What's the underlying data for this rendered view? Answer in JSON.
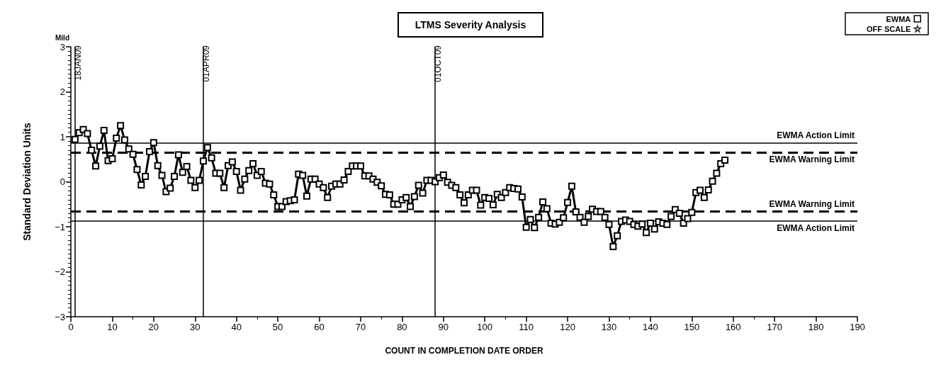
{
  "chart_data": {
    "type": "line",
    "title": "LTMS Severity Analysis",
    "xlabel": "COUNT IN COMPLETION DATE ORDER",
    "ylabel": "Standard Deviation Units",
    "annotations": [
      "Mild"
    ],
    "xlim": [
      0,
      190
    ],
    "xticks": [
      0,
      10,
      20,
      30,
      40,
      50,
      60,
      70,
      80,
      90,
      100,
      110,
      120,
      130,
      140,
      150,
      160,
      170,
      180,
      190
    ],
    "ylim": [
      -3,
      3
    ],
    "yticks": [
      -3,
      -2,
      -1,
      0,
      1,
      2,
      3
    ],
    "grid": false,
    "legend": "top right",
    "ref_lines": [
      {
        "axis": "y",
        "value": 0.87,
        "label": "EWMA Action Limit",
        "line_style": "solid",
        "color": "#000000"
      },
      {
        "axis": "y",
        "value": 0.65,
        "label": "EWMA Warning Limit",
        "line_style": "dashed",
        "color": "#000000"
      },
      {
        "axis": "y",
        "value": -0.65,
        "label": "EWMA Warning Limit",
        "line_style": "dashed",
        "color": "#000000"
      },
      {
        "axis": "y",
        "value": -0.87,
        "label": "EWMA Action Limit",
        "line_style": "solid",
        "color": "#000000"
      },
      {
        "axis": "x",
        "value": 1,
        "label": "18JAN09",
        "line_style": "solid",
        "color": "#000000"
      },
      {
        "axis": "x",
        "value": 32,
        "label": "01APR09",
        "line_style": "solid",
        "color": "#000000"
      },
      {
        "axis": "x",
        "value": 88,
        "label": "01OCT09",
        "line_style": "solid",
        "color": "#000000"
      }
    ],
    "series": [
      {
        "name": "EWMA",
        "color": "#000000",
        "marker": "square",
        "line_style": "solid",
        "x": [
          1,
          2,
          3,
          4,
          5,
          6,
          7,
          8,
          9,
          10,
          11,
          12,
          13,
          14,
          15,
          16,
          17,
          18,
          19,
          20,
          21,
          22,
          23,
          24,
          25,
          26,
          27,
          28,
          29,
          30,
          31,
          32,
          33,
          34,
          35,
          36,
          37,
          38,
          39,
          40,
          41,
          42,
          43,
          44,
          45,
          46,
          47,
          48,
          49,
          50,
          51,
          52,
          53,
          54,
          55,
          56,
          57,
          58,
          59,
          60,
          61,
          62,
          63,
          64,
          65,
          66,
          67,
          68,
          69,
          70,
          71,
          72,
          73,
          74,
          75,
          76,
          77,
          78,
          79,
          80,
          81,
          82,
          83,
          84,
          85,
          86,
          87,
          88,
          89,
          90,
          91,
          92,
          93,
          94,
          95,
          96,
          97,
          98,
          99,
          100,
          101,
          102,
          103,
          104,
          105,
          106,
          107,
          108,
          109,
          110,
          111,
          112,
          113,
          114,
          115,
          116,
          117,
          118,
          119,
          120,
          121,
          122,
          123,
          124,
          125,
          126,
          127,
          128,
          129,
          130,
          131,
          132,
          133,
          134,
          135,
          136,
          137,
          138,
          139,
          140,
          141,
          142,
          143,
          144,
          145,
          146,
          147,
          148,
          149,
          150,
          151,
          152,
          153,
          154,
          155,
          156,
          157,
          158
        ],
        "values": [
          0.94,
          1.09,
          1.16,
          1.07,
          0.7,
          0.35,
          0.79,
          1.14,
          0.47,
          0.51,
          0.97,
          1.25,
          0.93,
          0.73,
          0.61,
          0.27,
          -0.07,
          0.12,
          0.67,
          0.87,
          0.36,
          0.14,
          -0.22,
          -0.14,
          0.12,
          0.6,
          0.21,
          0.34,
          0.03,
          -0.13,
          0.03,
          0.46,
          0.76,
          0.53,
          0.19,
          0.19,
          -0.13,
          0.36,
          0.44,
          0.23,
          -0.19,
          0.06,
          0.25,
          0.4,
          0.14,
          0.23,
          -0.03,
          -0.05,
          -0.29,
          -0.55,
          -0.55,
          -0.44,
          -0.42,
          -0.4,
          0.17,
          0.14,
          -0.32,
          0.06,
          0.06,
          -0.05,
          -0.13,
          -0.35,
          -0.1,
          -0.05,
          -0.05,
          0.04,
          0.23,
          0.35,
          0.35,
          0.35,
          0.13,
          0.13,
          0.06,
          -0.01,
          -0.09,
          -0.28,
          -0.29,
          -0.5,
          -0.5,
          -0.4,
          -0.35,
          -0.55,
          -0.33,
          -0.08,
          -0.25,
          0.03,
          0.03,
          0.0,
          0.09,
          0.15,
          -0.01,
          -0.08,
          -0.13,
          -0.29,
          -0.47,
          -0.29,
          -0.19,
          -0.19,
          -0.52,
          -0.35,
          -0.37,
          -0.51,
          -0.28,
          -0.35,
          -0.24,
          -0.13,
          -0.15,
          -0.16,
          -0.34,
          -1.01,
          -0.84,
          -1.02,
          -0.79,
          -0.45,
          -0.6,
          -0.92,
          -0.94,
          -0.9,
          -0.8,
          -0.46,
          -0.1,
          -0.67,
          -0.79,
          -0.9,
          -0.77,
          -0.61,
          -0.66,
          -0.66,
          -0.79,
          -0.95,
          -1.44,
          -1.2,
          -0.88,
          -0.85,
          -0.88,
          -0.95,
          -0.99,
          -0.94,
          -1.13,
          -0.92,
          -1.05,
          -0.89,
          -0.92,
          -0.95,
          -0.77,
          -0.62,
          -0.7,
          -0.92,
          -0.82,
          -0.68,
          -0.24,
          -0.19,
          -0.35,
          -0.18,
          0.01,
          0.19,
          0.4,
          0.48
        ]
      },
      {
        "name": "OFF SCALE",
        "color": "#000000",
        "marker": "star",
        "type": "scatter"
      }
    ]
  }
}
